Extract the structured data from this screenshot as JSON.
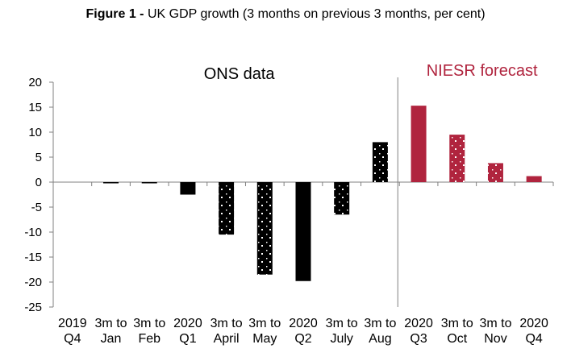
{
  "title": {
    "prefix": "Figure 1 -",
    "text": "UK GDP growth (3 months on previous 3 months, per cent)"
  },
  "colors": {
    "ons": "#000000",
    "forecast": "#b0243e",
    "pattern_dot": "#ffffff",
    "axis": "#808080"
  },
  "chart_data": {
    "type": "bar",
    "title": "UK GDP growth (3 months on previous 3 months, per cent)",
    "ylim": [
      -25,
      20
    ],
    "yticks": [
      20,
      15,
      10,
      5,
      0,
      -5,
      -10,
      -15,
      -20,
      -25
    ],
    "categories": [
      [
        "2019",
        "Q4"
      ],
      [
        "3m to",
        "Jan"
      ],
      [
        "3m to",
        "Feb"
      ],
      [
        "2020",
        "Q1"
      ],
      [
        "3m to",
        "April"
      ],
      [
        "3m to",
        "May"
      ],
      [
        "2020",
        "Q2"
      ],
      [
        "3m to",
        "July"
      ],
      [
        "3m to",
        "Aug"
      ],
      [
        "2020",
        "Q3"
      ],
      [
        "3m to",
        "Oct"
      ],
      [
        "3m to",
        "Nov"
      ],
      [
        "2020",
        "Q4"
      ]
    ],
    "values": [
      0.0,
      -0.1,
      -0.1,
      -2.5,
      -10.5,
      -18.5,
      -19.8,
      -6.5,
      8.0,
      15.3,
      9.5,
      3.8,
      1.2
    ],
    "styles": [
      "solid",
      "pattern",
      "pattern",
      "solid",
      "pattern",
      "pattern",
      "solid",
      "pattern",
      "pattern",
      "solid",
      "pattern",
      "pattern",
      "solid"
    ],
    "groups": [
      "ons",
      "ons",
      "ons",
      "ons",
      "ons",
      "ons",
      "ons",
      "ons",
      "ons",
      "forecast",
      "forecast",
      "forecast",
      "forecast"
    ],
    "sections": [
      {
        "label": "ONS data",
        "color": "#000000"
      },
      {
        "label": "NIESR forecast",
        "color": "#b0243e"
      }
    ]
  }
}
